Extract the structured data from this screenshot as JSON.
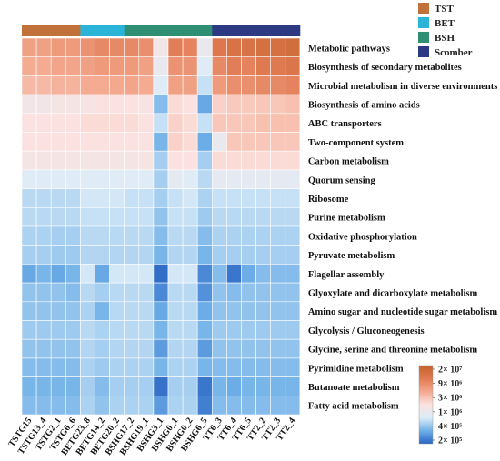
{
  "chart_data": {
    "type": "heatmap",
    "title": "",
    "columns": [
      "TSTG15",
      "TSTG13_4",
      "TSTG2_1",
      "TSTG6_6",
      "BETG23_8",
      "BETG14_2",
      "BETG20_2",
      "BSHG17_2",
      "BSHG19_1",
      "BSHG3_1",
      "BSHG0_1",
      "BSHG0_2",
      "BSHG6_5",
      "TT6_3",
      "TT6_4",
      "TT6_5",
      "TT2_2",
      "TT2_3",
      "TT2_4"
    ],
    "column_groups": [
      "TST",
      "TST",
      "TST",
      "TST",
      "BET",
      "BET",
      "BET",
      "BSH",
      "BSH",
      "BSH",
      "BSH",
      "BSH",
      "BSH",
      "Scomber",
      "Scomber",
      "Scomber",
      "Scomber",
      "Scomber",
      "Scomber"
    ],
    "groups_legend": [
      {
        "name": "TST",
        "color": "#c0723a"
      },
      {
        "name": "BET",
        "color": "#2ab5d8"
      },
      {
        "name": "BSH",
        "color": "#2f8f72"
      },
      {
        "name": "Scomber",
        "color": "#2d3a82"
      }
    ],
    "rows": [
      "Metabolic pathways",
      "Biosynthesis of secondary metabolites",
      "Microbial metabolism in diverse environments",
      "Biosynthesis of amino acids",
      "ABC transporters",
      "Two-component system",
      "Carbon metabolism",
      "Quorum sensing",
      "Ribosome",
      "Purine metabolism",
      "Oxidative phosphorylation",
      "Pyruvate metabolism",
      "Flagellar assembly",
      "Glyoxylate and dicarboxylate metabolism",
      "Amino sugar and nucleotide sugar metabolism",
      "Glycolysis / Gluconeogenesis",
      "Glycine, serine and threonine metabolism",
      "Pyrimidine metabolism",
      "Butanoate metabolism",
      "Fatty acid metabolism"
    ],
    "values": [
      [
        0.7,
        0.7,
        0.72,
        0.72,
        0.75,
        0.78,
        0.78,
        0.78,
        0.76,
        0.45,
        0.82,
        0.8,
        0.4,
        0.85,
        0.88,
        0.88,
        0.9,
        0.9,
        0.92
      ],
      [
        0.66,
        0.66,
        0.68,
        0.68,
        0.7,
        0.72,
        0.72,
        0.72,
        0.7,
        0.4,
        0.75,
        0.74,
        0.35,
        0.78,
        0.82,
        0.8,
        0.84,
        0.84,
        0.86
      ],
      [
        0.62,
        0.62,
        0.64,
        0.64,
        0.66,
        0.66,
        0.67,
        0.68,
        0.66,
        0.35,
        0.7,
        0.7,
        0.3,
        0.72,
        0.76,
        0.76,
        0.78,
        0.78,
        0.8
      ],
      [
        0.45,
        0.45,
        0.47,
        0.47,
        0.48,
        0.5,
        0.5,
        0.5,
        0.48,
        0.2,
        0.52,
        0.5,
        0.15,
        0.55,
        0.57,
        0.57,
        0.58,
        0.58,
        0.6
      ],
      [
        0.5,
        0.5,
        0.5,
        0.5,
        0.52,
        0.52,
        0.52,
        0.52,
        0.5,
        0.3,
        0.55,
        0.52,
        0.3,
        0.58,
        0.58,
        0.58,
        0.6,
        0.6,
        0.6
      ],
      [
        0.5,
        0.5,
        0.5,
        0.5,
        0.5,
        0.5,
        0.5,
        0.5,
        0.5,
        0.18,
        0.55,
        0.52,
        0.16,
        0.4,
        0.58,
        0.58,
        0.58,
        0.58,
        0.58
      ],
      [
        0.47,
        0.47,
        0.47,
        0.47,
        0.47,
        0.47,
        0.47,
        0.47,
        0.47,
        0.25,
        0.5,
        0.5,
        0.25,
        0.52,
        0.52,
        0.52,
        0.52,
        0.52,
        0.52
      ],
      [
        0.35,
        0.35,
        0.35,
        0.35,
        0.35,
        0.35,
        0.35,
        0.35,
        0.35,
        0.25,
        0.38,
        0.35,
        0.28,
        0.38,
        0.38,
        0.38,
        0.38,
        0.38,
        0.38
      ],
      [
        0.28,
        0.28,
        0.28,
        0.28,
        0.32,
        0.32,
        0.32,
        0.3,
        0.3,
        0.25,
        0.3,
        0.32,
        0.26,
        0.3,
        0.3,
        0.3,
        0.3,
        0.3,
        0.3
      ],
      [
        0.28,
        0.28,
        0.28,
        0.28,
        0.3,
        0.3,
        0.3,
        0.3,
        0.3,
        0.22,
        0.3,
        0.3,
        0.24,
        0.28,
        0.28,
        0.28,
        0.28,
        0.28,
        0.28
      ],
      [
        0.26,
        0.26,
        0.25,
        0.25,
        0.28,
        0.28,
        0.28,
        0.28,
        0.28,
        0.2,
        0.28,
        0.28,
        0.2,
        0.26,
        0.26,
        0.26,
        0.26,
        0.26,
        0.26
      ],
      [
        0.25,
        0.25,
        0.24,
        0.24,
        0.27,
        0.27,
        0.27,
        0.27,
        0.27,
        0.18,
        0.27,
        0.27,
        0.18,
        0.25,
        0.25,
        0.25,
        0.25,
        0.25,
        0.25
      ],
      [
        0.15,
        0.18,
        0.15,
        0.18,
        0.32,
        0.15,
        0.32,
        0.32,
        0.32,
        0.02,
        0.32,
        0.32,
        0.08,
        0.2,
        0.04,
        0.16,
        0.2,
        0.2,
        0.2
      ],
      [
        0.22,
        0.22,
        0.22,
        0.2,
        0.28,
        0.25,
        0.28,
        0.28,
        0.28,
        0.08,
        0.28,
        0.28,
        0.1,
        0.22,
        0.2,
        0.22,
        0.22,
        0.22,
        0.22
      ],
      [
        0.22,
        0.22,
        0.22,
        0.22,
        0.26,
        0.18,
        0.28,
        0.28,
        0.28,
        0.15,
        0.28,
        0.28,
        0.16,
        0.22,
        0.22,
        0.22,
        0.22,
        0.22,
        0.22
      ],
      [
        0.24,
        0.24,
        0.24,
        0.24,
        0.28,
        0.26,
        0.28,
        0.28,
        0.28,
        0.18,
        0.28,
        0.28,
        0.18,
        0.24,
        0.24,
        0.24,
        0.24,
        0.24,
        0.24
      ],
      [
        0.22,
        0.22,
        0.22,
        0.22,
        0.27,
        0.25,
        0.27,
        0.27,
        0.27,
        0.12,
        0.27,
        0.27,
        0.12,
        0.22,
        0.22,
        0.22,
        0.22,
        0.22,
        0.22
      ],
      [
        0.2,
        0.2,
        0.2,
        0.2,
        0.26,
        0.24,
        0.26,
        0.26,
        0.26,
        0.18,
        0.26,
        0.26,
        0.18,
        0.2,
        0.2,
        0.2,
        0.2,
        0.2,
        0.2
      ],
      [
        0.18,
        0.18,
        0.18,
        0.18,
        0.25,
        0.2,
        0.25,
        0.25,
        0.25,
        0.03,
        0.25,
        0.25,
        0.04,
        0.18,
        0.16,
        0.18,
        0.18,
        0.18,
        0.18
      ],
      [
        0.2,
        0.2,
        0.2,
        0.2,
        0.26,
        0.22,
        0.26,
        0.26,
        0.26,
        0.12,
        0.26,
        0.26,
        0.06,
        0.2,
        0.2,
        0.2,
        0.2,
        0.2,
        0.2
      ]
    ],
    "colorscale": {
      "stops": [
        "#2a64c4",
        "#6fb0e8",
        "#dcecf8",
        "#fbe2e0",
        "#f4a98f",
        "#e07a52",
        "#c2622b"
      ],
      "tick_labels": [
        "2× 10⁷",
        "9× 10⁶",
        "3× 10⁶",
        "1× 10⁶",
        "4× 10⁵",
        "2× 10⁵"
      ]
    }
  }
}
